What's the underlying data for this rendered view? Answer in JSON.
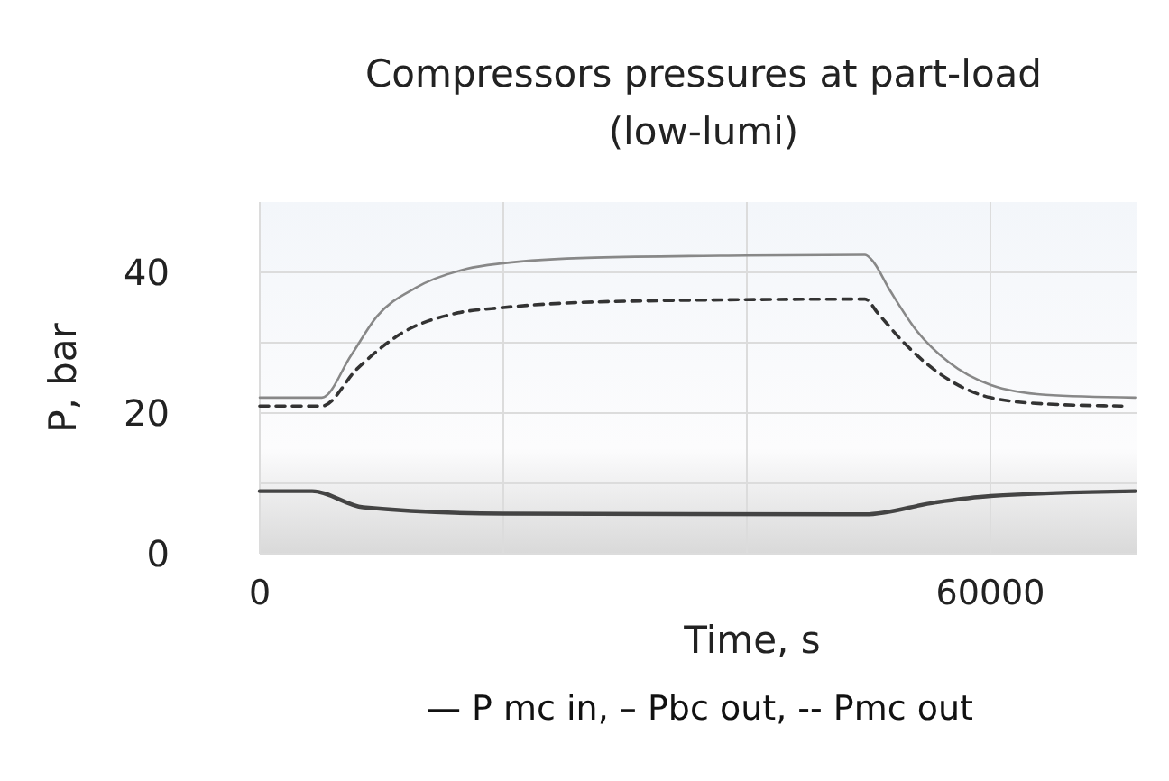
{
  "chart_data": {
    "type": "line",
    "title": "Compressors pressures at part-load",
    "subtitle": "(low-lumi)",
    "xlabel": "Time, s",
    "ylabel": "P, bar",
    "annotations": [
      "— P mc in, – Pbc out, -- Pmc out"
    ],
    "xlim": [
      0,
      72000
    ],
    "xticks": [
      0,
      {
        "value": 20000,
        "label": null
      },
      {
        "value": 40000,
        "label": null
      },
      60000
    ],
    "ylim": [
      0,
      50
    ],
    "yticks": [
      0,
      {
        "value": 10,
        "label": null
      },
      20,
      {
        "value": 30,
        "label": null
      },
      40
    ],
    "grid": true,
    "series": [
      {
        "color": "#444444",
        "line_style": "solid",
        "x": [
          0,
          4300,
          8500,
          20000,
          49700,
          55500,
          60000,
          71900
        ],
        "values": [
          8.9,
          8.9,
          6.6,
          5.7,
          5.6,
          7.3,
          8.2,
          8.9
        ]
      },
      {
        "color": "#888888",
        "line_style": "solid",
        "x": [
          0,
          5100,
          7500,
          9600,
          12800,
          17000,
          20000,
          27500,
          40000,
          49700,
          50200,
          51800,
          53900,
          56600,
          60000,
          64500,
          71900
        ],
        "values": [
          22.2,
          22.2,
          28.2,
          33.7,
          37.8,
          40.5,
          41.3,
          42.1,
          42.4,
          42.5,
          41.9,
          37.3,
          31.8,
          27.2,
          24.0,
          22.6,
          22.2
        ]
      },
      {
        "color": "#333333",
        "line_style": "dashed",
        "x": [
          0,
          5100,
          8000,
          11700,
          15900,
          20000,
          30200,
          49700,
          50800,
          52900,
          56000,
          60000,
          64500,
          70800
        ],
        "values": [
          21.0,
          21.0,
          26.3,
          31.4,
          34.1,
          35.0,
          35.9,
          36.2,
          34.1,
          30.0,
          25.4,
          22.2,
          21.3,
          21.0
        ]
      }
    ]
  }
}
